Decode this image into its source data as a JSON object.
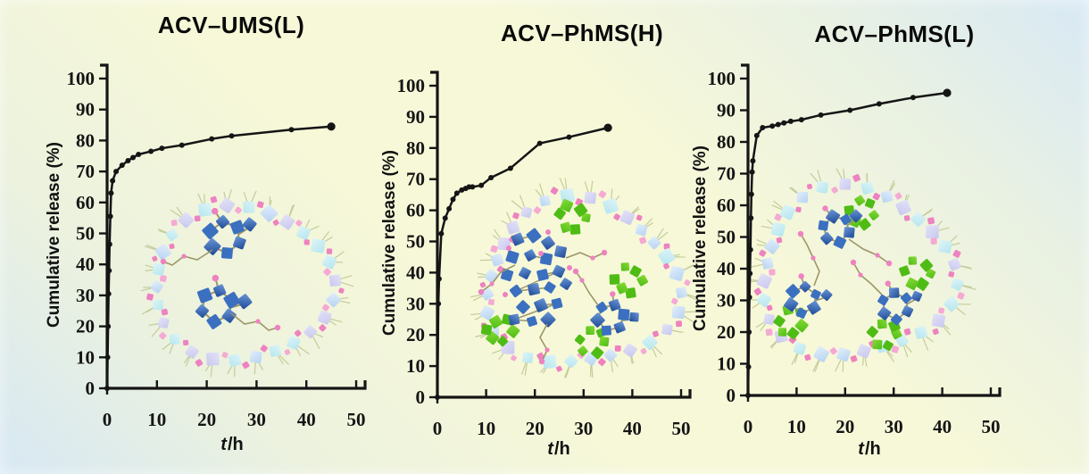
{
  "background": {
    "paper_yellow": "#f7f8d8",
    "sky_blue": "#d8e9f4"
  },
  "palette": {
    "axis": "#151515",
    "curve": "#151515",
    "silica_blue": "#b7d3f1",
    "silica_cyan": "#b5e6ee",
    "silica_lavender": "#c9c8ee",
    "linker_pink": "#ee82c0",
    "linker_pink_light": "#f5a9d4",
    "acv_blue_dark": "#1d4a96",
    "acv_blue": "#3b70c0",
    "phenyl_green": "#4fbc15",
    "phenyl_green_light": "#86da36",
    "chain_tan": "#9d9768",
    "whisker": "#c4cc9b"
  },
  "chart_data": [
    {
      "type": "line",
      "title": "ACV–UMS(L)",
      "xlabel": "t/h",
      "xlabel_var": "t",
      "xlabel_unit": "/h",
      "ylabel": "Cumulative release (%)",
      "xlim": [
        0,
        50
      ],
      "ylim": [
        0,
        100
      ],
      "xticks": [
        0,
        10,
        20,
        30,
        40,
        50
      ],
      "yticks": [
        0,
        10,
        20,
        30,
        40,
        50,
        60,
        70,
        80,
        90,
        100
      ],
      "grid": false,
      "legend": "none",
      "series": [
        {
          "name": "cumulative release",
          "x": [
            0,
            0.1,
            0.2,
            0.3,
            0.4,
            0.5,
            0.65,
            0.8,
            1.1,
            1.8,
            3,
            4.2,
            5.2,
            6.3,
            8.8,
            11,
            15,
            21,
            25,
            37,
            45
          ],
          "y": [
            0,
            10,
            20,
            30.5,
            38,
            46.5,
            55.5,
            63,
            67,
            70,
            72,
            73.5,
            74.5,
            75.5,
            76.5,
            77.5,
            78.5,
            80.5,
            81.5,
            83.5,
            84.5
          ]
        }
      ],
      "inset_illustration": "unmodified mesoporous silica ring loaded with two ACV molecules"
    },
    {
      "type": "line",
      "title": "ACV–PhMS(H)",
      "xlabel": "t/h",
      "xlabel_var": "t",
      "xlabel_unit": "/h",
      "ylabel": "Cumulative release (%)",
      "xlim": [
        0,
        50
      ],
      "ylim": [
        0,
        100
      ],
      "xticks": [
        0,
        10,
        20,
        30,
        40,
        50
      ],
      "yticks": [
        0,
        10,
        20,
        30,
        40,
        50,
        60,
        70,
        80,
        90,
        100
      ],
      "grid": false,
      "legend": "none",
      "series": [
        {
          "name": "cumulative release",
          "x": [
            0,
            0.2,
            0.35,
            0.8,
            1.6,
            2.4,
            3.2,
            4,
            5,
            5.8,
            6.5,
            7.2,
            9,
            11,
            15,
            21,
            27,
            35
          ],
          "y": [
            0,
            30,
            38,
            52.5,
            57.5,
            60.5,
            63.5,
            65.5,
            66.5,
            67,
            67.5,
            67.5,
            68,
            70.5,
            73.5,
            81.5,
            83.5,
            86.5
          ]
        }
      ],
      "inset_illustration": "phenyl-modified mesoporous silica ring (high phenyl content) with ACV molecules and green phenyl clusters"
    },
    {
      "type": "line",
      "title": "ACV–PhMS(L)",
      "xlabel": "t/h",
      "xlabel_var": "t",
      "xlabel_unit": "/h",
      "ylabel": "Cumulative release (%)",
      "xlim": [
        0,
        50
      ],
      "ylim": [
        0,
        100
      ],
      "xticks": [
        0,
        10,
        20,
        30,
        40,
        50
      ],
      "yticks": [
        0,
        10,
        20,
        30,
        40,
        50,
        60,
        70,
        80,
        90,
        100
      ],
      "grid": false,
      "legend": "none",
      "series": [
        {
          "name": "cumulative release",
          "x": [
            0,
            0.1,
            0.2,
            0.3,
            0.4,
            0.5,
            0.6,
            0.7,
            0.85,
            1,
            1.8,
            3,
            5,
            6.2,
            7.4,
            8.8,
            11,
            15,
            21,
            27,
            34,
            41
          ],
          "y": [
            0,
            9,
            20,
            31,
            38.5,
            46,
            56,
            63.5,
            70.5,
            74,
            82,
            84.5,
            85,
            85.5,
            86,
            86.5,
            87,
            88.5,
            90,
            92,
            94,
            95.5
          ]
        }
      ],
      "inset_illustration": "phenyl-modified mesoporous silica ring (low phenyl content) with ACV molecules and green phenyl clusters"
    }
  ]
}
